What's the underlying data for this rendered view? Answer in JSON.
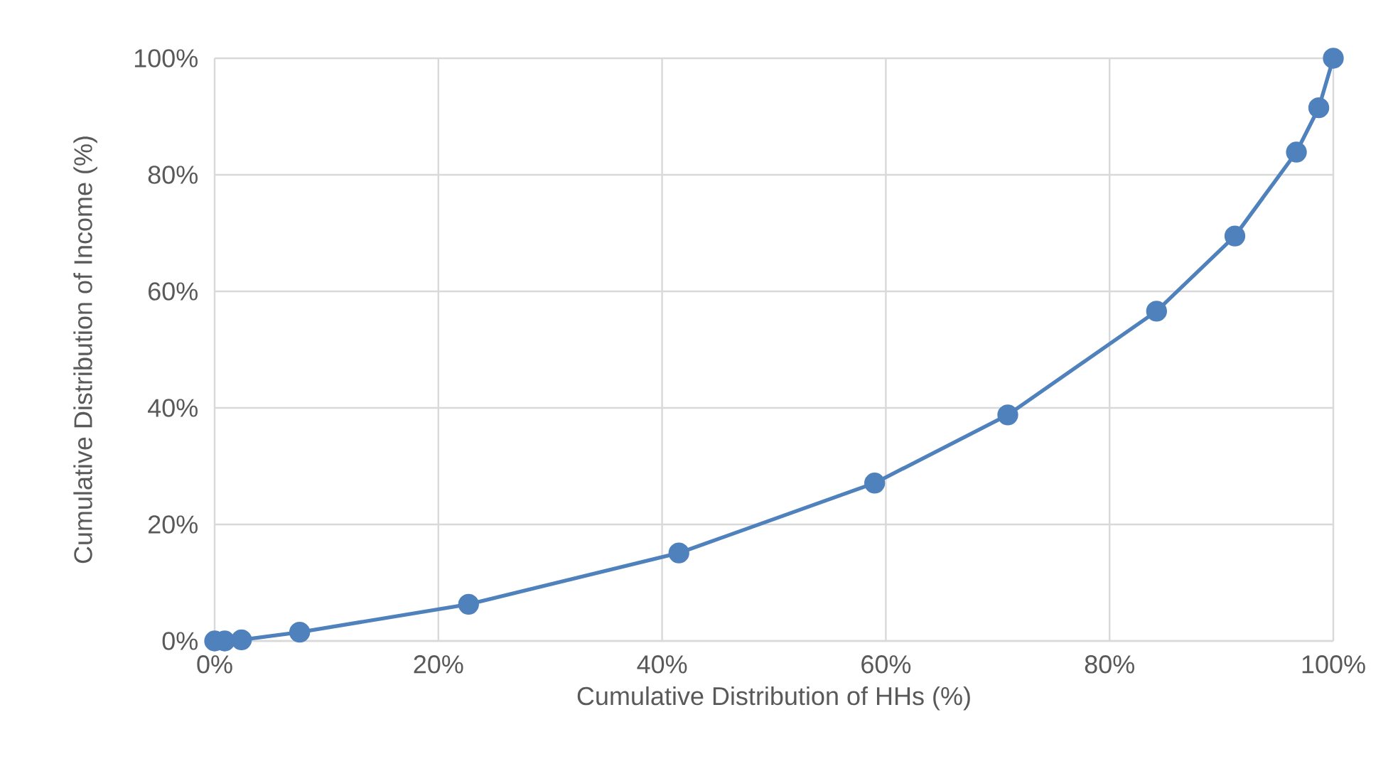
{
  "chart_data": {
    "type": "line",
    "xlabel": "Cumulative Distribution of HHs (%)",
    "ylabel": "Cumulative Distribution of Income (%)",
    "x": [
      0,
      0.9,
      2.4,
      7.6,
      22.7,
      41.5,
      59.0,
      70.9,
      84.2,
      91.2,
      96.7,
      98.7,
      100
    ],
    "series": [
      {
        "color": "#4f81bd",
        "values": [
          0,
          0,
          0.2,
          1.5,
          6.3,
          15.1,
          27.1,
          38.8,
          56.6,
          69.5,
          83.9,
          91.5,
          100
        ]
      }
    ],
    "xlim": [
      0,
      100
    ],
    "ylim": [
      0,
      100
    ],
    "xticks": [
      {
        "value": 0,
        "label": "0%"
      },
      {
        "value": 20,
        "label": "20%"
      },
      {
        "value": 40,
        "label": "40%"
      },
      {
        "value": 60,
        "label": "60%"
      },
      {
        "value": 80,
        "label": "80%"
      },
      {
        "value": 100,
        "label": "100%"
      }
    ],
    "yticks": [
      {
        "value": 0,
        "label": "0%"
      },
      {
        "value": 20,
        "label": "20%"
      },
      {
        "value": 40,
        "label": "40%"
      },
      {
        "value": 60,
        "label": "60%"
      },
      {
        "value": 80,
        "label": "80%"
      },
      {
        "value": 100,
        "label": "100%"
      }
    ],
    "grid": true,
    "marker": "circle",
    "line_style": "solid"
  }
}
